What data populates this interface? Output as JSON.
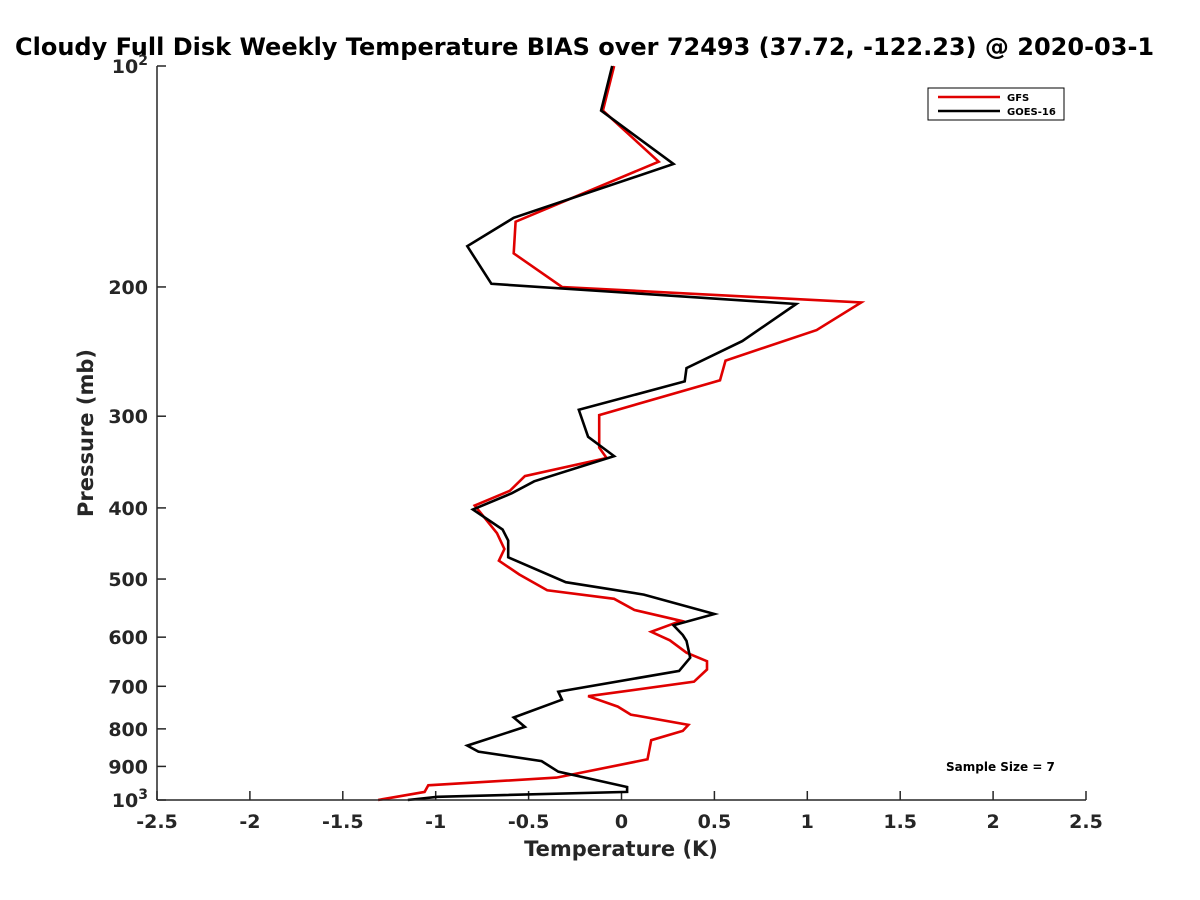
{
  "chart_data": {
    "type": "line",
    "title": "Cloudy Full Disk Weekly Temperature BIAS over 72493 (37.72, -122.23) @ 2020-03-1",
    "xlabel": "Temperature (K)",
    "ylabel": "Pressure (mb)",
    "xlim": [
      -2.5,
      2.5
    ],
    "ylim": [
      1000,
      100
    ],
    "yscale": "log",
    "x_ticks": [
      "-2.5",
      "-2",
      "-1.5",
      "-1",
      "-0.5",
      "0",
      "0.5",
      "1",
      "1.5",
      "2",
      "2.5"
    ],
    "x_tick_values": [
      -2.5,
      -2,
      -1.5,
      -1,
      -0.5,
      0,
      0.5,
      1,
      1.5,
      2,
      2.5
    ],
    "y_ticks": [
      {
        "value": 100,
        "base": "10",
        "exp": "2"
      },
      {
        "value": 200,
        "label": "200"
      },
      {
        "value": 300,
        "label": "300"
      },
      {
        "value": 400,
        "label": "400"
      },
      {
        "value": 500,
        "label": "500"
      },
      {
        "value": 600,
        "label": "600"
      },
      {
        "value": 700,
        "label": "700"
      },
      {
        "value": 800,
        "label": "800"
      },
      {
        "value": 900,
        "label": "900"
      },
      {
        "value": 1000,
        "base": "10",
        "exp": "3"
      }
    ],
    "grid": false,
    "legend_position": "top-right",
    "annotation": "Sample Size = 7",
    "series": [
      {
        "name": "GFS",
        "color": "#e00000",
        "points": [
          [
            -0.04,
            100
          ],
          [
            -0.1,
            115
          ],
          [
            0.2,
            135
          ],
          [
            -0.57,
            163
          ],
          [
            -0.58,
            180
          ],
          [
            -0.32,
            200
          ],
          [
            1.29,
            210
          ],
          [
            1.05,
            229
          ],
          [
            0.56,
            252
          ],
          [
            0.53,
            268
          ],
          [
            -0.12,
            299
          ],
          [
            -0.12,
            331
          ],
          [
            -0.08,
            342
          ],
          [
            -0.52,
            362
          ],
          [
            -0.6,
            379
          ],
          [
            -0.79,
            397
          ],
          [
            -0.67,
            433
          ],
          [
            -0.63,
            455
          ],
          [
            -0.66,
            472
          ],
          [
            -0.55,
            493
          ],
          [
            -0.4,
            518
          ],
          [
            -0.04,
            532
          ],
          [
            0.07,
            551
          ],
          [
            0.32,
            570
          ],
          [
            0.16,
            590
          ],
          [
            0.26,
            606
          ],
          [
            0.35,
            630
          ],
          [
            0.46,
            647
          ],
          [
            0.46,
            664
          ],
          [
            0.39,
            690
          ],
          [
            -0.18,
            722
          ],
          [
            -0.02,
            746
          ],
          [
            0.05,
            765
          ],
          [
            0.36,
            790
          ],
          [
            0.33,
            805
          ],
          [
            0.16,
            829
          ],
          [
            0.14,
            880
          ],
          [
            -0.35,
            932
          ],
          [
            -1.04,
            955
          ],
          [
            -1.06,
            975
          ],
          [
            -1.31,
            1000
          ]
        ]
      },
      {
        "name": "GOES-16",
        "color": "#000000",
        "points": [
          [
            -0.05,
            100
          ],
          [
            -0.11,
            115
          ],
          [
            0.28,
            136
          ],
          [
            -0.58,
            161
          ],
          [
            -0.83,
            176
          ],
          [
            -0.7,
            198
          ],
          [
            0.94,
            211
          ],
          [
            0.65,
            237
          ],
          [
            0.35,
            258
          ],
          [
            0.34,
            269
          ],
          [
            -0.23,
            294
          ],
          [
            -0.18,
            320
          ],
          [
            -0.04,
            340
          ],
          [
            -0.47,
            368
          ],
          [
            -0.59,
            382
          ],
          [
            -0.8,
            402
          ],
          [
            -0.64,
            428
          ],
          [
            -0.61,
            443
          ],
          [
            -0.61,
            467
          ],
          [
            -0.3,
            505
          ],
          [
            0.12,
            525
          ],
          [
            0.5,
            558
          ],
          [
            0.28,
            578
          ],
          [
            0.33,
            596
          ],
          [
            0.35,
            607
          ],
          [
            0.37,
            640
          ],
          [
            0.31,
            667
          ],
          [
            -0.34,
            712
          ],
          [
            -0.32,
            730
          ],
          [
            -0.58,
            772
          ],
          [
            -0.52,
            795
          ],
          [
            -0.83,
            843
          ],
          [
            -0.77,
            859
          ],
          [
            -0.43,
            885
          ],
          [
            -0.34,
            915
          ],
          [
            0.03,
            960
          ],
          [
            0.03,
            975
          ],
          [
            -0.99,
            990
          ],
          [
            -1.15,
            1000
          ]
        ]
      }
    ]
  }
}
